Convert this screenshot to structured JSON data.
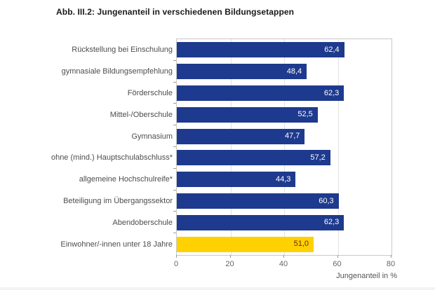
{
  "colors": {
    "bar_blue": "#1e3a8e",
    "bar_yellow": "#ffd100",
    "value_on_blue": "#ffffff",
    "value_on_yellow": "#6b231b",
    "gridline": "#e2e2e2"
  },
  "chart_data": {
    "type": "bar",
    "orientation": "horizontal",
    "title": "Abb. III.2: Jungenanteil in verschiedenen Bildungsetappen",
    "xlabel": "Jungenanteil in %",
    "xlim": [
      0,
      80
    ],
    "xticks": [
      0,
      20,
      40,
      60,
      80
    ],
    "grid": "vertical",
    "legend": "none",
    "categories": [
      "Rückstellung bei Einschulung",
      "gymnasiale Bildungsempfehlung",
      "Förderschule",
      "Mittel-/Oberschule",
      "Gymnasium",
      "ohne (mind.) Hauptschulabschluss*",
      "allgemeine Hochschulreife*",
      "Beteiligung im Übergangssektor",
      "Abendoberschule",
      "Einwohner/-innen unter 18 Jahre"
    ],
    "values": [
      62.4,
      48.4,
      62.3,
      52.5,
      47.7,
      57.2,
      44.3,
      60.3,
      62.3,
      51.0
    ],
    "value_labels": [
      "62,4",
      "48,4",
      "62,3",
      "52,5",
      "47,7",
      "57,2",
      "44,3",
      "60,3",
      "62,3",
      "51,0"
    ],
    "highlight_index": 9
  }
}
